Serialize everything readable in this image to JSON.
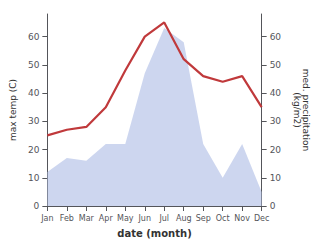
{
  "chart_data": {
    "type": "line",
    "xlabel": "date (month)",
    "ylabel": "max temp (C)",
    "y2label": "med. precipitation\n(kg/m2)",
    "categories": [
      "Jan",
      "Feb",
      "Mar",
      "Apr",
      "May",
      "Jun",
      "Jul",
      "Aug",
      "Sep",
      "Oct",
      "Nov",
      "Dec"
    ],
    "series": [
      {
        "type": "area",
        "axis": "y2",
        "color": "#b8c4e8",
        "values": [
          12,
          17,
          16,
          22,
          22,
          47,
          63,
          58,
          22,
          10,
          22,
          5
        ]
      },
      {
        "type": "line",
        "axis": "y",
        "color": "#c0393b",
        "values": [
          25,
          27,
          28,
          35,
          48,
          60,
          65,
          52,
          46,
          44,
          46,
          35
        ]
      }
    ],
    "ylim": [
      0,
      68
    ],
    "yticks": [
      0,
      10,
      20,
      30,
      40,
      50,
      60
    ],
    "y2lim": [
      0,
      68
    ],
    "y2ticks": [
      0,
      10,
      20,
      30,
      40,
      50,
      60
    ],
    "grid": false
  }
}
